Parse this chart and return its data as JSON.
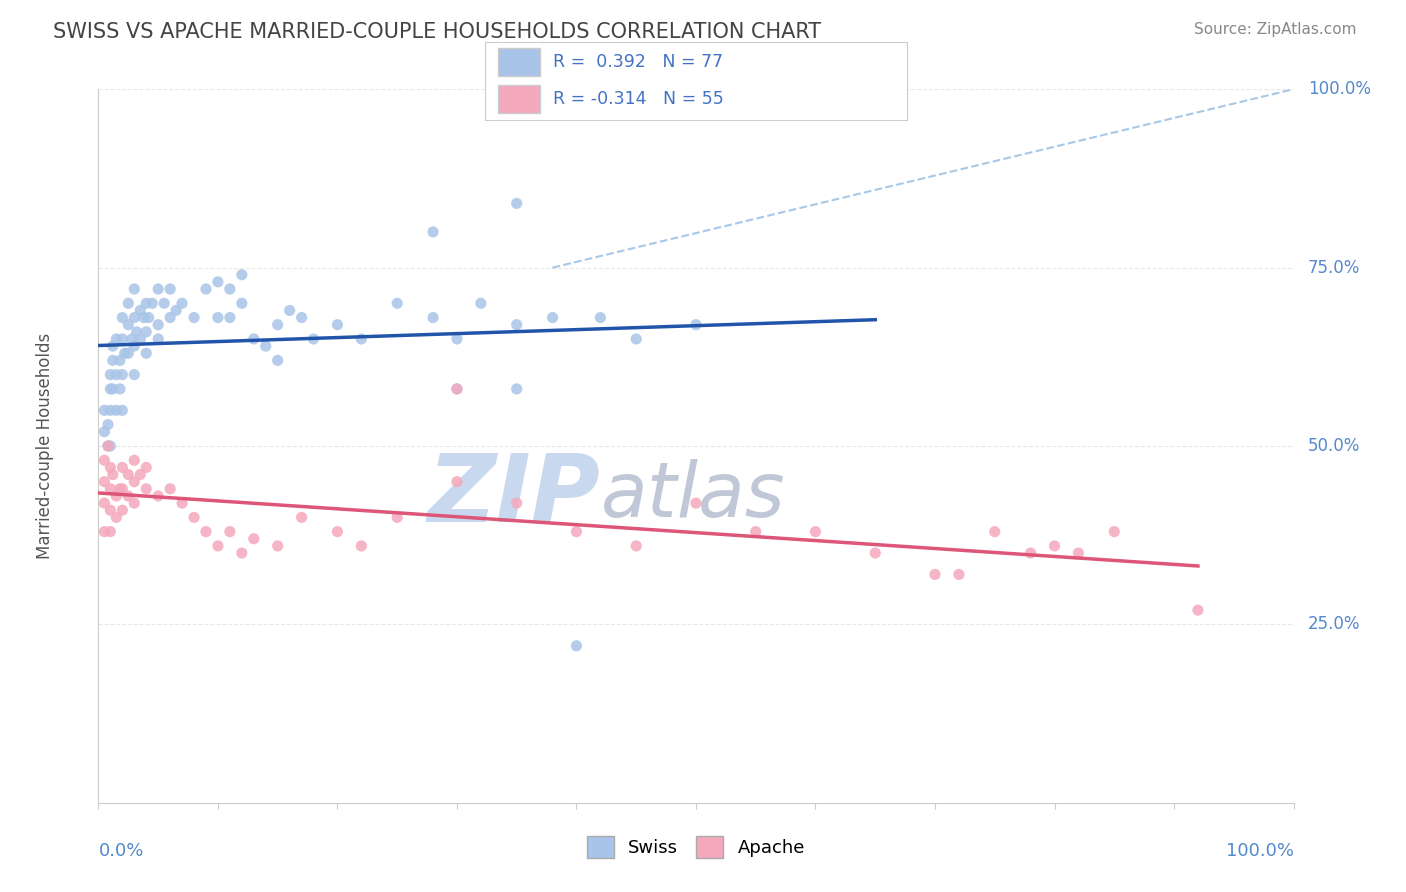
{
  "title": "SWISS VS APACHE MARRIED-COUPLE HOUSEHOLDS CORRELATION CHART",
  "source_text": "Source: ZipAtlas.com",
  "ylabel": "Married-couple Households",
  "ylabel_right_labels": [
    "25.0%",
    "50.0%",
    "75.0%",
    "100.0%"
  ],
  "ylabel_right_positions": [
    0.25,
    0.5,
    0.75,
    1.0
  ],
  "swiss_color": "#a8c4e8",
  "apache_color": "#f4a8bc",
  "swiss_line_color": "#2255aa",
  "apache_line_color": "#dd5577",
  "ref_line_color": "#a8c8e8",
  "title_color": "#444444",
  "watermark_zip_color": "#c8d8ee",
  "watermark_atlas_color": "#c0c8d8",
  "background_color": "#ffffff",
  "grid_color": "#e8e8e8",
  "xlim": [
    0,
    1
  ],
  "ylim": [
    0,
    1
  ],
  "swiss_points": [
    [
      0.005,
      0.52
    ],
    [
      0.005,
      0.55
    ],
    [
      0.008,
      0.5
    ],
    [
      0.008,
      0.53
    ],
    [
      0.01,
      0.58
    ],
    [
      0.01,
      0.6
    ],
    [
      0.01,
      0.55
    ],
    [
      0.01,
      0.5
    ],
    [
      0.012,
      0.62
    ],
    [
      0.012,
      0.58
    ],
    [
      0.012,
      0.64
    ],
    [
      0.015,
      0.55
    ],
    [
      0.015,
      0.6
    ],
    [
      0.015,
      0.65
    ],
    [
      0.018,
      0.58
    ],
    [
      0.018,
      0.62
    ],
    [
      0.02,
      0.65
    ],
    [
      0.02,
      0.6
    ],
    [
      0.02,
      0.68
    ],
    [
      0.02,
      0.55
    ],
    [
      0.022,
      0.63
    ],
    [
      0.025,
      0.67
    ],
    [
      0.025,
      0.63
    ],
    [
      0.025,
      0.7
    ],
    [
      0.028,
      0.65
    ],
    [
      0.03,
      0.68
    ],
    [
      0.03,
      0.64
    ],
    [
      0.03,
      0.6
    ],
    [
      0.03,
      0.72
    ],
    [
      0.032,
      0.66
    ],
    [
      0.035,
      0.69
    ],
    [
      0.035,
      0.65
    ],
    [
      0.038,
      0.68
    ],
    [
      0.04,
      0.7
    ],
    [
      0.04,
      0.66
    ],
    [
      0.04,
      0.63
    ],
    [
      0.042,
      0.68
    ],
    [
      0.045,
      0.7
    ],
    [
      0.05,
      0.67
    ],
    [
      0.05,
      0.72
    ],
    [
      0.05,
      0.65
    ],
    [
      0.055,
      0.7
    ],
    [
      0.06,
      0.68
    ],
    [
      0.06,
      0.72
    ],
    [
      0.065,
      0.69
    ],
    [
      0.07,
      0.7
    ],
    [
      0.08,
      0.68
    ],
    [
      0.09,
      0.72
    ],
    [
      0.1,
      0.73
    ],
    [
      0.1,
      0.68
    ],
    [
      0.11,
      0.68
    ],
    [
      0.11,
      0.72
    ],
    [
      0.12,
      0.7
    ],
    [
      0.12,
      0.74
    ],
    [
      0.13,
      0.65
    ],
    [
      0.14,
      0.64
    ],
    [
      0.15,
      0.67
    ],
    [
      0.15,
      0.62
    ],
    [
      0.16,
      0.69
    ],
    [
      0.17,
      0.68
    ],
    [
      0.18,
      0.65
    ],
    [
      0.2,
      0.67
    ],
    [
      0.22,
      0.65
    ],
    [
      0.25,
      0.7
    ],
    [
      0.28,
      0.68
    ],
    [
      0.3,
      0.65
    ],
    [
      0.3,
      0.58
    ],
    [
      0.32,
      0.7
    ],
    [
      0.35,
      0.67
    ],
    [
      0.35,
      0.58
    ],
    [
      0.38,
      0.68
    ],
    [
      0.4,
      0.22
    ],
    [
      0.42,
      0.68
    ],
    [
      0.45,
      0.65
    ],
    [
      0.5,
      0.67
    ],
    [
      0.35,
      0.84
    ],
    [
      0.28,
      0.8
    ]
  ],
  "apache_points": [
    [
      0.005,
      0.48
    ],
    [
      0.005,
      0.45
    ],
    [
      0.005,
      0.42
    ],
    [
      0.005,
      0.38
    ],
    [
      0.008,
      0.5
    ],
    [
      0.01,
      0.47
    ],
    [
      0.01,
      0.44
    ],
    [
      0.01,
      0.41
    ],
    [
      0.01,
      0.38
    ],
    [
      0.012,
      0.46
    ],
    [
      0.015,
      0.43
    ],
    [
      0.015,
      0.4
    ],
    [
      0.018,
      0.44
    ],
    [
      0.02,
      0.47
    ],
    [
      0.02,
      0.44
    ],
    [
      0.02,
      0.41
    ],
    [
      0.025,
      0.46
    ],
    [
      0.025,
      0.43
    ],
    [
      0.03,
      0.48
    ],
    [
      0.03,
      0.45
    ],
    [
      0.03,
      0.42
    ],
    [
      0.035,
      0.46
    ],
    [
      0.04,
      0.44
    ],
    [
      0.04,
      0.47
    ],
    [
      0.05,
      0.43
    ],
    [
      0.06,
      0.44
    ],
    [
      0.07,
      0.42
    ],
    [
      0.08,
      0.4
    ],
    [
      0.09,
      0.38
    ],
    [
      0.1,
      0.36
    ],
    [
      0.11,
      0.38
    ],
    [
      0.12,
      0.35
    ],
    [
      0.13,
      0.37
    ],
    [
      0.15,
      0.36
    ],
    [
      0.17,
      0.4
    ],
    [
      0.2,
      0.38
    ],
    [
      0.22,
      0.36
    ],
    [
      0.25,
      0.4
    ],
    [
      0.3,
      0.58
    ],
    [
      0.3,
      0.45
    ],
    [
      0.35,
      0.42
    ],
    [
      0.4,
      0.38
    ],
    [
      0.45,
      0.36
    ],
    [
      0.5,
      0.42
    ],
    [
      0.55,
      0.38
    ],
    [
      0.6,
      0.38
    ],
    [
      0.65,
      0.35
    ],
    [
      0.7,
      0.32
    ],
    [
      0.72,
      0.32
    ],
    [
      0.75,
      0.38
    ],
    [
      0.78,
      0.35
    ],
    [
      0.8,
      0.36
    ],
    [
      0.82,
      0.35
    ],
    [
      0.85,
      0.38
    ],
    [
      0.92,
      0.27
    ]
  ],
  "swiss_trend": [
    0.0,
    0.5,
    0.65,
    0.72
  ],
  "apache_trend_x": [
    0.0,
    0.92
  ],
  "apache_trend_y": [
    0.47,
    0.38
  ],
  "ref_line": [
    [
      0.38,
      0.75
    ],
    [
      1.0,
      1.0
    ]
  ]
}
